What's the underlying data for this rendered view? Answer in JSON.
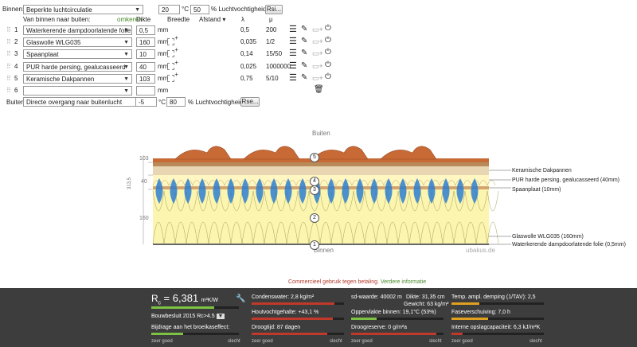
{
  "inside": {
    "label": "Binnen:",
    "condition": "Beperkte luchtcirculatie",
    "temperature": "20",
    "temp_unit": "°C",
    "humidity": "50",
    "humidity_unit": "% Luchtvochtigheid",
    "rsi_button": "Rsi..."
  },
  "header": {
    "from_inside": "Van binnen naar buiten:",
    "reverse_link": "omkeren",
    "thickness": "Dikte",
    "width": "Breedte",
    "distance": "Afstand",
    "lambda": "λ",
    "mu": "μ"
  },
  "layers": [
    {
      "num": "1",
      "material": "Waterkerende dampdoorlatende folie",
      "thickness": "0,5",
      "unit": "mm",
      "lambda": "0,5",
      "mu": "200"
    },
    {
      "num": "2",
      "material": "Glaswolle WLG035",
      "thickness": "160",
      "unit": "mm",
      "lambda": "0,035",
      "mu": "1/2"
    },
    {
      "num": "3",
      "material": "Spaanplaat",
      "thickness": "10",
      "unit": "mm",
      "lambda": "0,14",
      "mu": "15/50"
    },
    {
      "num": "4",
      "material": "PUR harde persing, gealucasseerd",
      "thickness": "40",
      "unit": "mm",
      "lambda": "0,025",
      "mu": "1000000"
    },
    {
      "num": "5",
      "material": "Keramische Dakpannen",
      "thickness": "103",
      "unit": "mm",
      "lambda": "0,75",
      "mu": "5/10"
    },
    {
      "num": "6",
      "material": "",
      "thickness": "",
      "unit": "mm",
      "lambda": "",
      "mu": ""
    }
  ],
  "outside": {
    "label": "Buiten:",
    "condition": "Directe overgang naar buitenlucht",
    "temperature": "-5",
    "temp_unit": "°C",
    "humidity": "80",
    "humidity_unit": "% Luchtvochtigheid",
    "rse_button": "Rse..."
  },
  "diagram": {
    "top_label": "Buiten",
    "bottom_label": "Binnen",
    "watermark": "ubakus.de",
    "dim_total": "313,5",
    "dim_103": "103",
    "dim_40": "40",
    "dim_160": "160",
    "markers": [
      "5",
      "4",
      "3",
      "2",
      "1"
    ],
    "legend": [
      "Keramische Dakpannen",
      "PUR harde persing, gealucasseerd (40mm)",
      "Spaanplaat (10mm)",
      "Glaswolle WLG035 (160mm)",
      "Waterkerende dampdoorlatende folie (0,5mm)"
    ]
  },
  "notice": {
    "text": "Commercieel gebruik tegen betaling.",
    "link": "Verdere informatie"
  },
  "results": {
    "rc_symbol": "R",
    "rc_sub": "c",
    "rc_value": "= 6,381",
    "rc_unit": "m²K/W",
    "rc_fill": 0.72,
    "building_code": "Bouwbesluit 2015 Rc>4.5",
    "greenhouse": "Bijdrage aan het broeikaseffect:",
    "condensate": "Condenswater: 2,8 kg/m²",
    "wood_moisture": "Houtvochtgehalte: +43,1 %",
    "drying_time": "Droogtijd: 87 dagen",
    "sd_value": "sd-waarde: 40002 m",
    "thickness": "Dikte: 31,35 cm",
    "weight": "Gewicht: 63 kg/m²",
    "surface_temp": "Oppervlakte binnen: 19,1°C (53%)",
    "drying_reserve": "Droogreserve: 0 g/m²a",
    "temp_damping": "Temp. ampl. demping (1/TAV): 2,5",
    "phase_shift": "Faseverschuiving: 7,0 h",
    "heat_capacity": "Interne opslagcapaciteit: 6,3 kJ/m²K",
    "scale_good": "zeer goed",
    "scale_bad": "slecht",
    "colors": {
      "good": "#7dc242",
      "bad": "#c0392b",
      "panel": "#3d3d3d"
    }
  }
}
